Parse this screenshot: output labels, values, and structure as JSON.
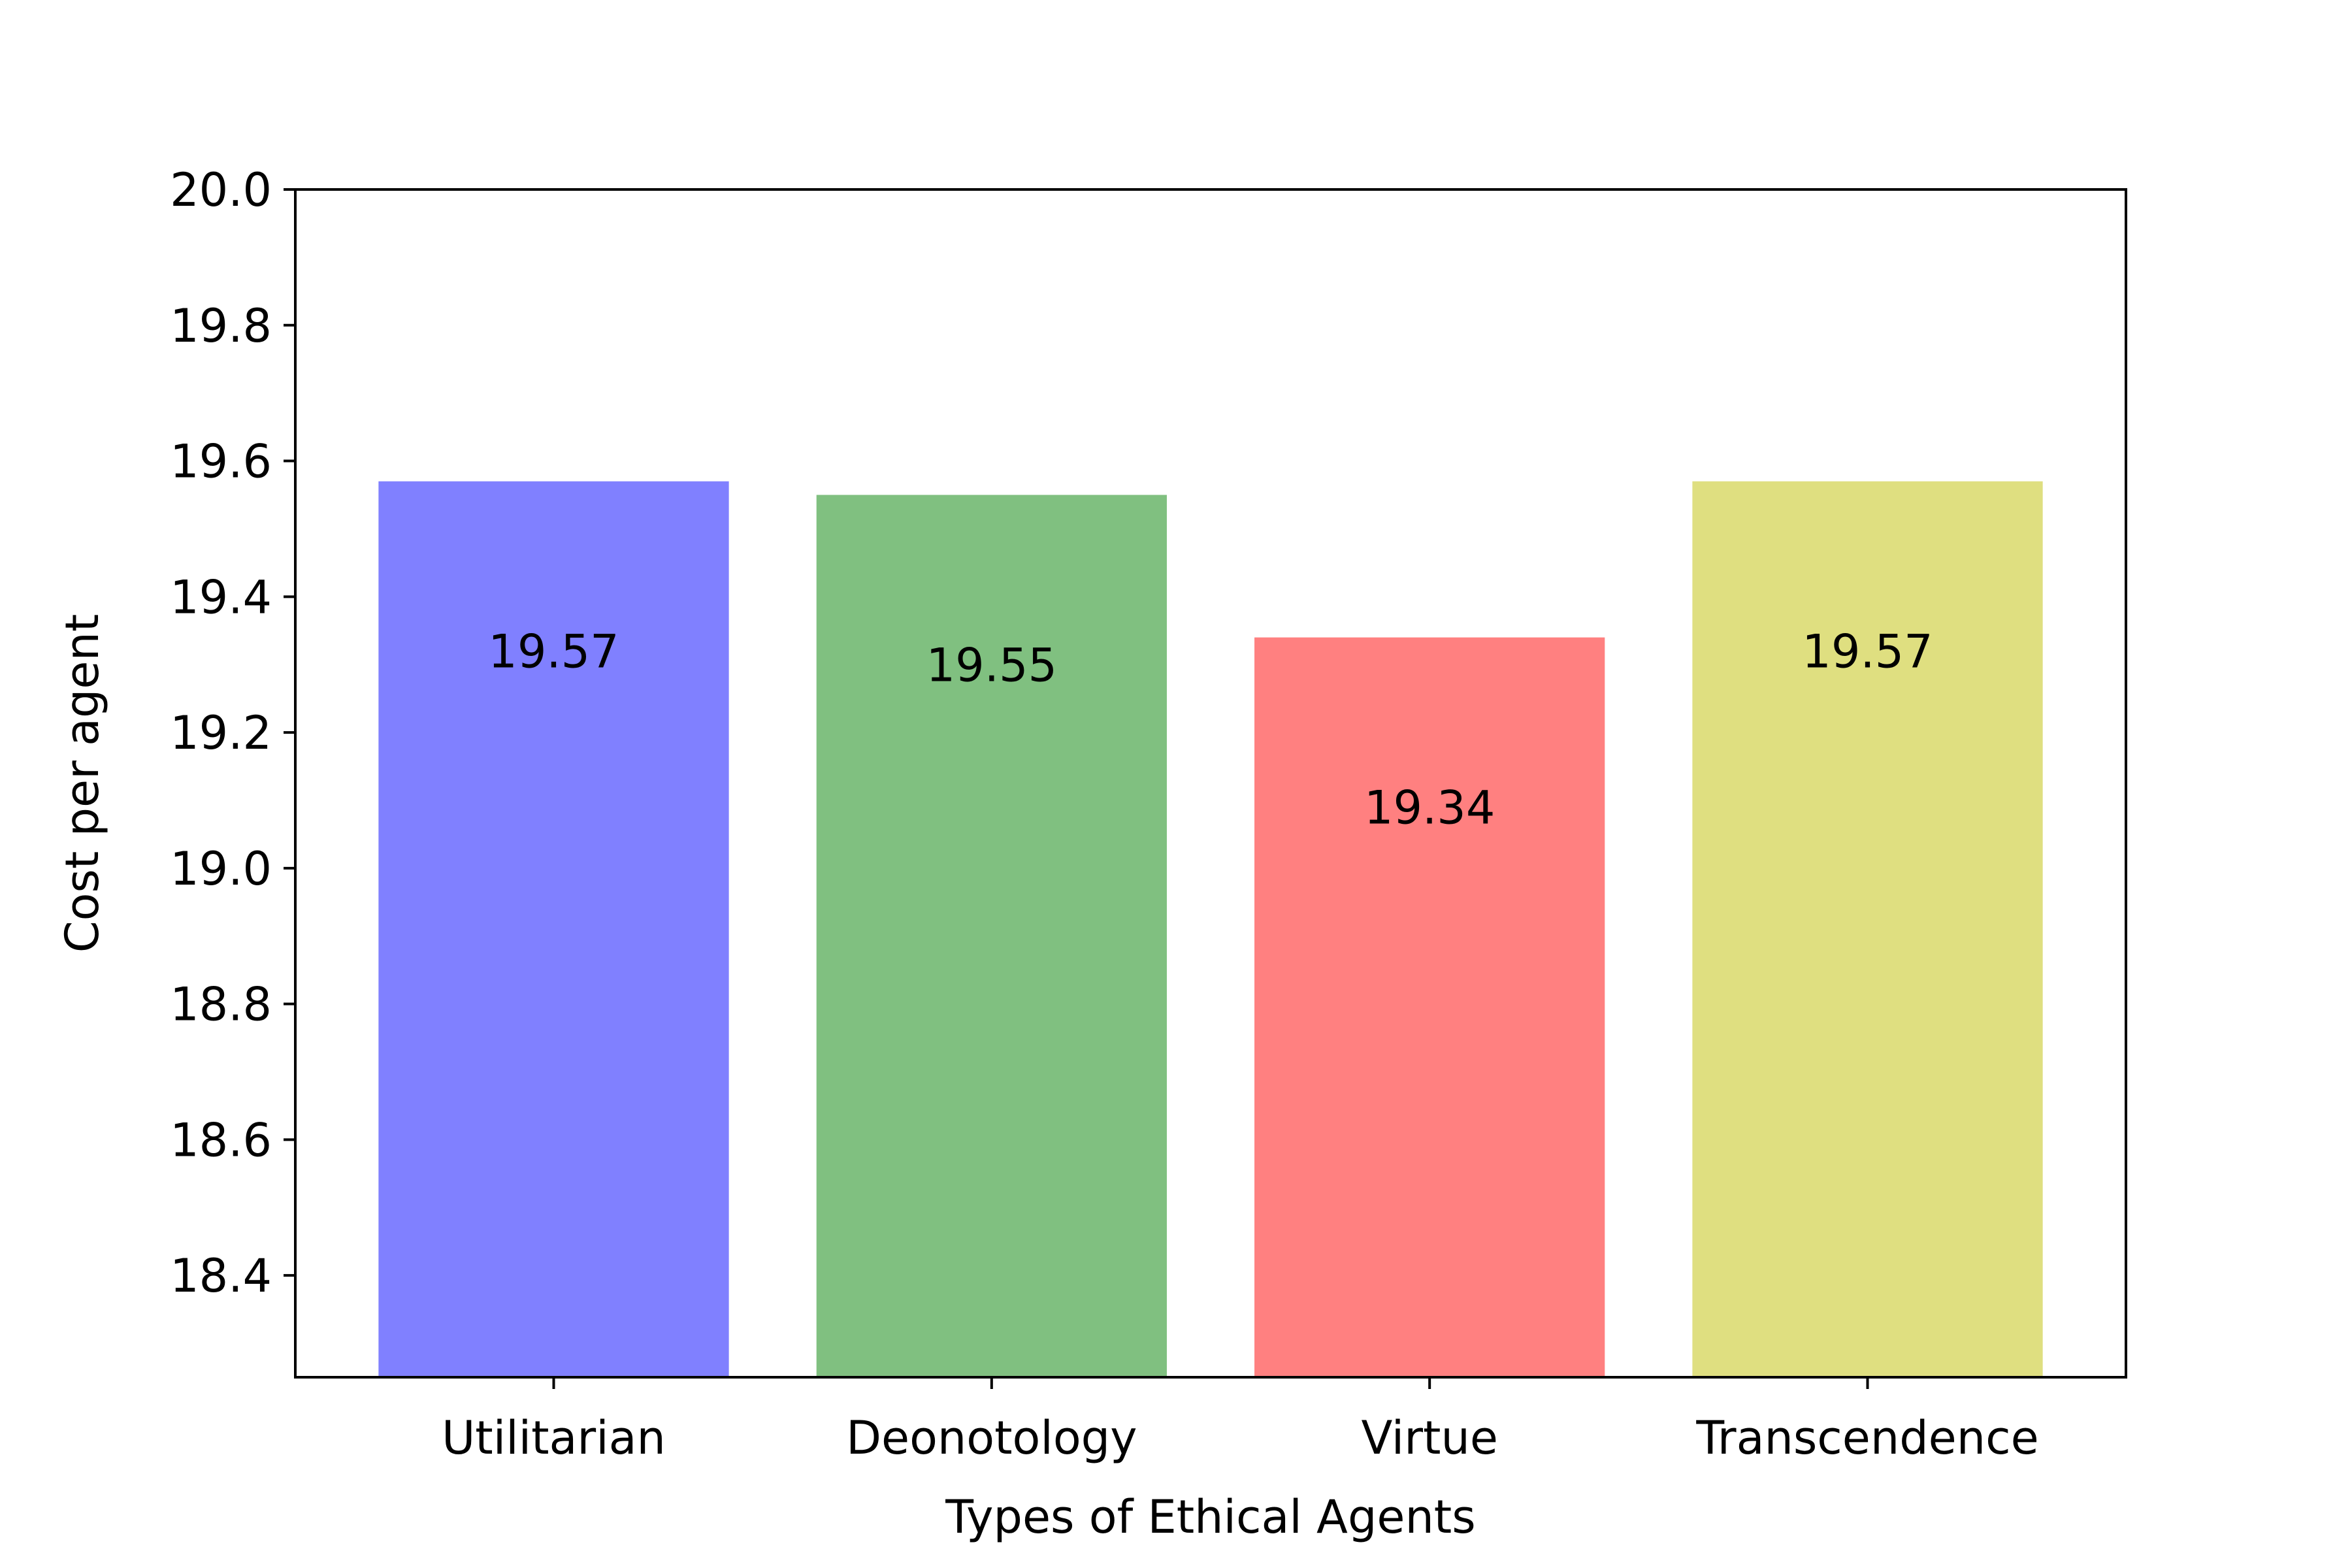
{
  "chart_data": {
    "type": "bar",
    "title": "",
    "xlabel": "Types of Ethical Agents",
    "ylabel": "Cost per agent",
    "categories": [
      "Utilitarian",
      "Deonotology",
      "Virtue",
      "Transcendence"
    ],
    "values": [
      19.57,
      19.55,
      19.34,
      19.57
    ],
    "data_labels": [
      "19.57",
      "19.55",
      "19.34",
      "19.57"
    ],
    "colors": [
      "#8080ff",
      "#80c080",
      "#ff8080",
      "#dfdf80"
    ],
    "ylim": [
      18.25,
      20.0
    ],
    "yticks": [
      18.4,
      18.6,
      18.8,
      19.0,
      19.2,
      19.4,
      19.6,
      19.8,
      20.0
    ],
    "ytick_labels": [
      "18.4",
      "18.6",
      "18.8",
      "19.0",
      "19.2",
      "19.4",
      "19.6",
      "19.8",
      "20.0"
    ],
    "grid": false,
    "legend": "none"
  }
}
